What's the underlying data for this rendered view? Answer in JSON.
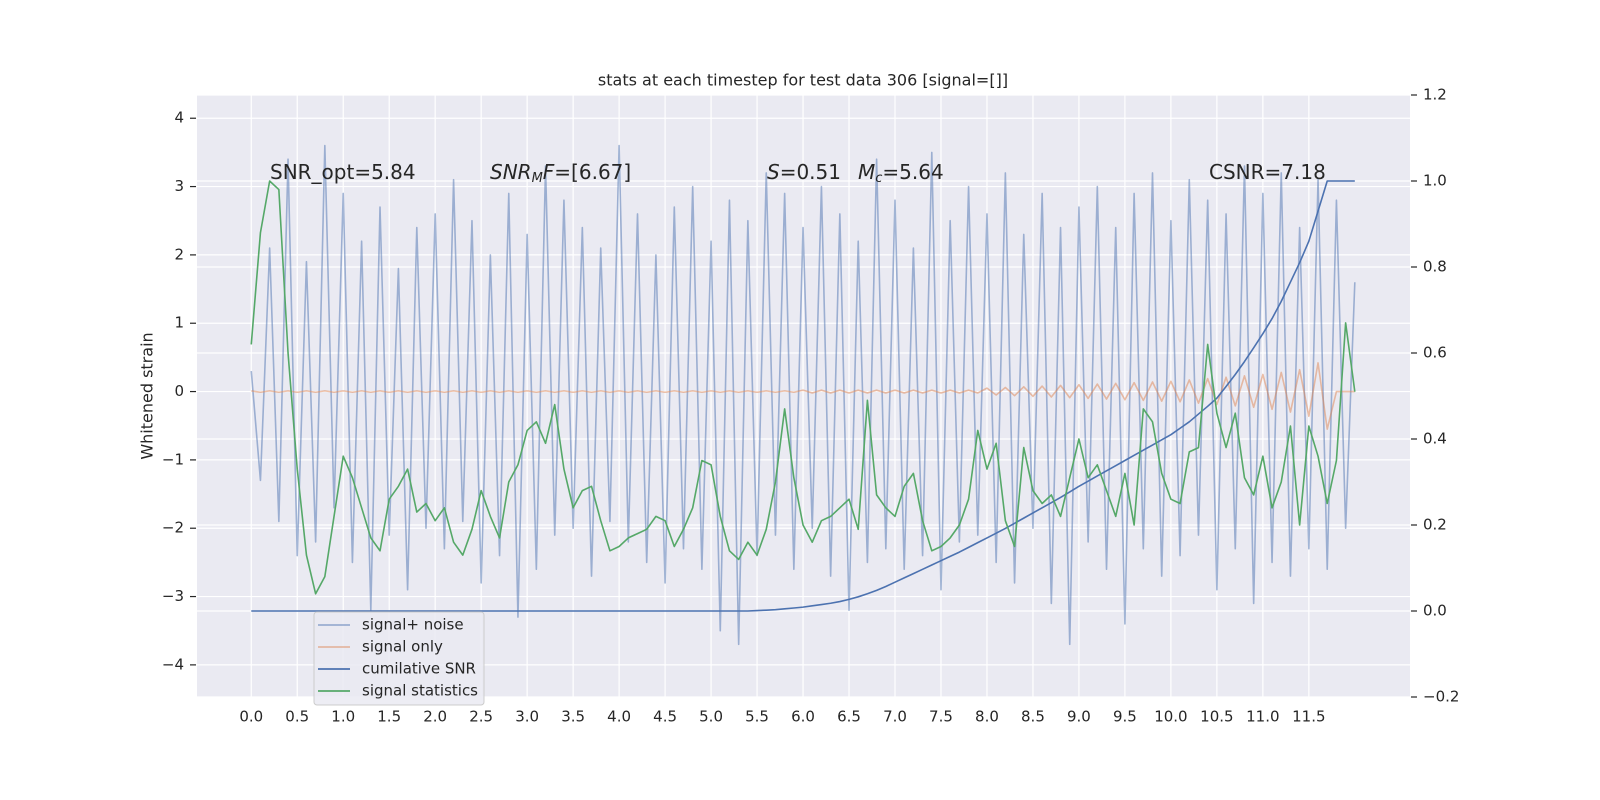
{
  "chart_data": {
    "type": "line",
    "title": "stats at each timestep for test data 306 [signal=[]]",
    "ylabel": "Whitened strain",
    "x": [
      0.0,
      0.1,
      0.2,
      0.3,
      0.4,
      0.5,
      0.6,
      0.7,
      0.8,
      0.9,
      1.0,
      1.1,
      1.2,
      1.3,
      1.4,
      1.5,
      1.6,
      1.7,
      1.8,
      1.9,
      2.0,
      2.1,
      2.2,
      2.3,
      2.4,
      2.5,
      2.6,
      2.7,
      2.8,
      2.9,
      3.0,
      3.1,
      3.2,
      3.3,
      3.4,
      3.5,
      3.6,
      3.7,
      3.8,
      3.9,
      4.0,
      4.1,
      4.2,
      4.3,
      4.4,
      4.5,
      4.6,
      4.7,
      4.8,
      4.9,
      5.0,
      5.1,
      5.2,
      5.3,
      5.4,
      5.5,
      5.6,
      5.7,
      5.8,
      5.9,
      6.0,
      6.1,
      6.2,
      6.3,
      6.4,
      6.5,
      6.6,
      6.7,
      6.8,
      6.9,
      7.0,
      7.1,
      7.2,
      7.3,
      7.4,
      7.5,
      7.6,
      7.7,
      7.8,
      7.9,
      8.0,
      8.1,
      8.2,
      8.3,
      8.4,
      8.5,
      8.6,
      8.7,
      8.8,
      8.9,
      9.0,
      9.1,
      9.2,
      9.3,
      9.4,
      9.5,
      9.6,
      9.7,
      9.8,
      9.9,
      10.0,
      10.1,
      10.2,
      10.3,
      10.4,
      10.5,
      10.6,
      10.7,
      10.8,
      10.9,
      11.0,
      11.1,
      11.2,
      11.3,
      11.4,
      11.5,
      11.6,
      11.7,
      11.8,
      11.9,
      12.0
    ],
    "series": [
      {
        "name": "signal+ noise",
        "color": "#4c72b0",
        "alpha": 0.5,
        "values": [
          0.3,
          -1.3,
          2.1,
          -1.9,
          3.4,
          -2.4,
          1.9,
          -2.2,
          3.6,
          -1.7,
          2.9,
          -2.5,
          2.2,
          -3.2,
          2.7,
          -2.1,
          1.8,
          -2.9,
          2.4,
          -2.0,
          2.6,
          -2.3,
          3.1,
          -1.9,
          2.5,
          -2.8,
          2.0,
          -2.4,
          2.9,
          -3.3,
          2.3,
          -2.6,
          3.3,
          -2.1,
          2.8,
          -2.0,
          2.4,
          -2.7,
          2.1,
          -1.9,
          3.6,
          -2.2,
          2.6,
          -2.5,
          2.0,
          -2.8,
          2.7,
          -2.3,
          3.0,
          -2.6,
          2.2,
          -3.5,
          2.8,
          -3.7,
          2.5,
          -2.4,
          3.2,
          -2.1,
          2.9,
          -2.6,
          2.4,
          -2.0,
          3.0,
          -2.7,
          2.6,
          -3.2,
          2.2,
          -2.5,
          3.4,
          -2.3,
          2.8,
          -2.6,
          2.1,
          -2.4,
          3.5,
          -2.9,
          2.5,
          -2.2,
          3.0,
          -2.1,
          2.6,
          -2.5,
          3.2,
          -2.8,
          2.3,
          -2.0,
          2.9,
          -3.1,
          2.4,
          -3.7,
          2.7,
          -2.2,
          3.0,
          -2.6,
          2.4,
          -3.4,
          2.9,
          -2.3,
          3.2,
          -2.7,
          2.5,
          -2.4,
          3.1,
          -2.1,
          2.8,
          -2.9,
          2.6,
          -2.3,
          3.3,
          -3.1,
          2.9,
          -2.5,
          3.2,
          -2.7,
          2.4,
          -2.3,
          3.1,
          -2.6,
          2.8,
          -2.0,
          1.6
        ]
      },
      {
        "name": "signal only",
        "color": "#dd8452",
        "alpha": 0.5,
        "values": [
          0.01,
          -0.01,
          0.01,
          -0.01,
          0.01,
          -0.01,
          0.01,
          -0.01,
          0.01,
          -0.01,
          0.01,
          -0.01,
          0.01,
          -0.01,
          0.01,
          -0.01,
          0.01,
          -0.01,
          0.01,
          -0.01,
          0.01,
          -0.01,
          0.01,
          -0.01,
          0.01,
          -0.01,
          0.01,
          -0.01,
          0.01,
          -0.01,
          0.01,
          -0.01,
          0.01,
          -0.01,
          0.01,
          -0.01,
          0.01,
          -0.01,
          0.01,
          -0.01,
          0.01,
          -0.01,
          0.01,
          -0.01,
          0.01,
          -0.01,
          0.01,
          -0.01,
          0.01,
          -0.01,
          0.01,
          -0.01,
          0.01,
          -0.01,
          0.01,
          -0.01,
          0.01,
          -0.01,
          0.01,
          -0.01,
          0.02,
          -0.02,
          0.02,
          -0.02,
          0.02,
          -0.02,
          0.02,
          -0.02,
          0.02,
          -0.02,
          0.02,
          -0.02,
          0.02,
          -0.02,
          0.02,
          -0.02,
          0.02,
          -0.02,
          0.02,
          -0.02,
          0.05,
          -0.05,
          0.06,
          -0.06,
          0.07,
          -0.07,
          0.08,
          -0.08,
          0.09,
          -0.09,
          0.1,
          -0.1,
          0.11,
          -0.11,
          0.12,
          -0.12,
          0.13,
          -0.13,
          0.14,
          -0.14,
          0.15,
          -0.15,
          0.17,
          -0.17,
          0.19,
          -0.19,
          0.21,
          -0.21,
          0.23,
          -0.23,
          0.25,
          -0.26,
          0.28,
          -0.3,
          0.32,
          -0.36,
          0.42,
          -0.55,
          0.0,
          0.0,
          0.0
        ]
      },
      {
        "name": "cumilative SNR",
        "color": "#4c72b0",
        "alpha": 1,
        "axis": "y2",
        "values": [
          0,
          0,
          0,
          0,
          0,
          0,
          0,
          0,
          0,
          0,
          0,
          0,
          0,
          0,
          0,
          0,
          0,
          0,
          0,
          0,
          0,
          0,
          0,
          0,
          0,
          0,
          0,
          0,
          0,
          0,
          0,
          0,
          0,
          0,
          0,
          0,
          0,
          0,
          0,
          0,
          0,
          0,
          0,
          0,
          0,
          0,
          0,
          0,
          0,
          0,
          0,
          0,
          0,
          0,
          0,
          0.001,
          0.002,
          0.003,
          0.005,
          0.007,
          0.009,
          0.012,
          0.015,
          0.018,
          0.022,
          0.027,
          0.033,
          0.04,
          0.048,
          0.057,
          0.067,
          0.077,
          0.087,
          0.097,
          0.107,
          0.117,
          0.127,
          0.137,
          0.148,
          0.159,
          0.17,
          0.181,
          0.192,
          0.204,
          0.216,
          0.228,
          0.24,
          0.252,
          0.264,
          0.277,
          0.29,
          0.302,
          0.314,
          0.326,
          0.338,
          0.35,
          0.362,
          0.374,
          0.386,
          0.398,
          0.41,
          0.425,
          0.44,
          0.458,
          0.476,
          0.495,
          0.522,
          0.55,
          0.58,
          0.612,
          0.645,
          0.68,
          0.72,
          0.765,
          0.81,
          0.86,
          0.93,
          1.0,
          1.0,
          1.0,
          1.0
        ]
      },
      {
        "name": "signal statistics",
        "color": "#55a868",
        "alpha": 1,
        "axis": "y2",
        "values": [
          0.62,
          0.88,
          1.0,
          0.98,
          0.6,
          0.33,
          0.13,
          0.04,
          0.08,
          0.22,
          0.36,
          0.31,
          0.24,
          0.17,
          0.14,
          0.26,
          0.29,
          0.33,
          0.23,
          0.25,
          0.21,
          0.24,
          0.16,
          0.13,
          0.19,
          0.28,
          0.22,
          0.17,
          0.3,
          0.34,
          0.42,
          0.44,
          0.39,
          0.48,
          0.33,
          0.24,
          0.28,
          0.29,
          0.21,
          0.14,
          0.15,
          0.17,
          0.18,
          0.19,
          0.22,
          0.21,
          0.15,
          0.19,
          0.24,
          0.35,
          0.34,
          0.22,
          0.14,
          0.12,
          0.16,
          0.13,
          0.19,
          0.3,
          0.47,
          0.31,
          0.2,
          0.16,
          0.21,
          0.22,
          0.24,
          0.26,
          0.19,
          0.49,
          0.27,
          0.24,
          0.22,
          0.29,
          0.32,
          0.21,
          0.14,
          0.15,
          0.17,
          0.2,
          0.26,
          0.42,
          0.33,
          0.39,
          0.21,
          0.15,
          0.38,
          0.28,
          0.25,
          0.27,
          0.22,
          0.31,
          0.4,
          0.31,
          0.34,
          0.28,
          0.22,
          0.32,
          0.2,
          0.47,
          0.44,
          0.32,
          0.26,
          0.25,
          0.37,
          0.38,
          0.62,
          0.46,
          0.38,
          0.46,
          0.31,
          0.27,
          0.36,
          0.24,
          0.3,
          0.43,
          0.2,
          0.43,
          0.36,
          0.25,
          0.35,
          0.67,
          0.51
        ]
      }
    ],
    "xlim": [
      -0.59,
      12.6
    ],
    "xticks": [
      {
        "value": 0,
        "label": "0.0"
      },
      0.5,
      {
        "value": 1,
        "label": "1.0"
      },
      1.5,
      {
        "value": 2,
        "label": "2.0"
      },
      2.5,
      {
        "value": 3,
        "label": "3.0"
      },
      3.5,
      {
        "value": 4,
        "label": "4.0"
      },
      4.5,
      {
        "value": 5,
        "label": "5.0"
      },
      5.5,
      {
        "value": 6,
        "label": "6.0"
      },
      6.5,
      {
        "value": 7,
        "label": "7.0"
      },
      7.5,
      {
        "value": 8,
        "label": "8.0"
      },
      8.5,
      {
        "value": 9,
        "label": "9.0"
      },
      9.5,
      {
        "value": 10,
        "label": "10.0"
      },
      10.5,
      {
        "value": 11,
        "label": "11.0"
      },
      11.5
    ],
    "ylim": [
      -4.47,
      4.34
    ],
    "yticks": [
      {
        "value": -4,
        "label": "−4"
      },
      {
        "value": -3,
        "label": "−3"
      },
      {
        "value": -2,
        "label": "−2"
      },
      {
        "value": -1,
        "label": "−1"
      },
      0,
      1,
      2,
      3,
      4
    ],
    "y2lim": [
      -0.2,
      1.2
    ],
    "y2ticks": [
      {
        "value": -0.2,
        "label": "−0.2"
      },
      {
        "value": 0,
        "label": "0.0"
      },
      0.2,
      0.4,
      0.6,
      0.8,
      {
        "value": 1,
        "label": "1.0"
      },
      1.2
    ],
    "grid": true,
    "legend": "lower left",
    "annotations": [
      [
        {
          "text": "SNR_opt=5.84"
        }
      ],
      [
        {
          "text": "SNR",
          "style": "italic"
        },
        {
          "text": "M",
          "style": "sub"
        },
        {
          "text": "F",
          "style": "italic"
        },
        {
          "text": "=[6.67]"
        }
      ],
      [
        {
          "text": "S",
          "style": "italic"
        },
        {
          "text": "=0.51"
        }
      ],
      [
        {
          "text": "M",
          "style": "italic"
        },
        {
          "text": "c",
          "style": "sub"
        },
        {
          "text": "=5.64"
        }
      ],
      [
        {
          "text": "CSNR=7.18"
        }
      ]
    ]
  }
}
